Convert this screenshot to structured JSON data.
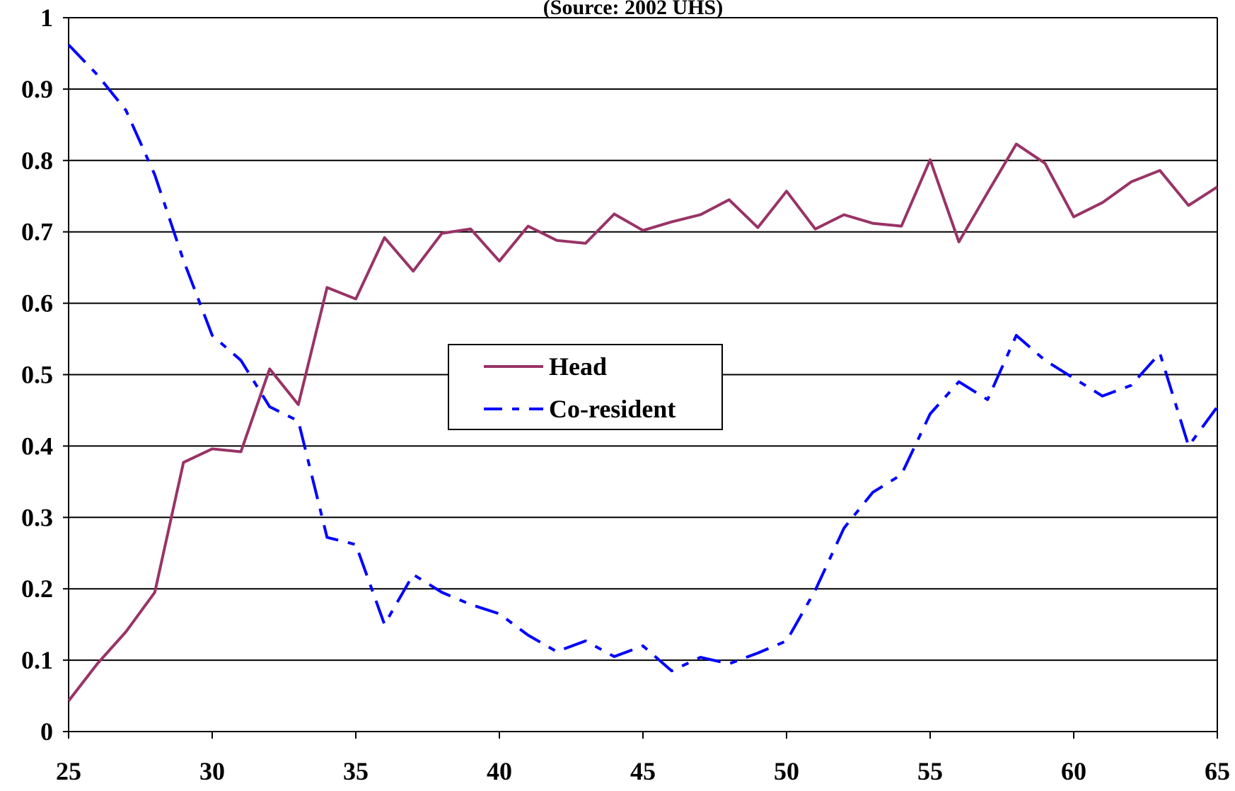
{
  "chart_data": {
    "type": "line",
    "subtitle": "(Source: 2002 UHS)",
    "x": [
      25,
      26,
      27,
      28,
      29,
      30,
      31,
      32,
      33,
      34,
      35,
      36,
      37,
      38,
      39,
      40,
      41,
      42,
      43,
      44,
      45,
      46,
      47,
      48,
      49,
      50,
      51,
      52,
      53,
      54,
      55,
      56,
      57,
      58,
      59,
      60,
      61,
      62,
      63,
      64,
      65
    ],
    "series": [
      {
        "name": "Head",
        "color": "#993366",
        "dash": "none",
        "values": [
          0.043,
          0.095,
          0.14,
          0.195,
          0.377,
          0.396,
          0.392,
          0.508,
          0.458,
          0.622,
          0.606,
          0.692,
          0.645,
          0.698,
          0.704,
          0.659,
          0.708,
          0.688,
          0.684,
          0.725,
          0.702,
          0.714,
          0.724,
          0.745,
          0.706,
          0.757,
          0.704,
          0.724,
          0.712,
          0.708,
          0.801,
          0.686,
          0.755,
          0.823,
          0.796,
          0.721,
          0.741,
          0.77,
          0.786,
          0.737,
          0.763
        ]
      },
      {
        "name": "Co-resident",
        "color": "#0000ff",
        "dash": "dash-dot",
        "values": [
          0.962,
          0.92,
          0.87,
          0.78,
          0.66,
          0.555,
          0.52,
          0.455,
          0.435,
          0.272,
          0.262,
          0.15,
          0.22,
          0.195,
          0.178,
          0.165,
          0.135,
          0.112,
          0.127,
          0.105,
          0.12,
          0.085,
          0.104,
          0.095,
          0.11,
          0.127,
          0.198,
          0.285,
          0.335,
          0.36,
          0.445,
          0.49,
          0.465,
          0.555,
          0.52,
          0.495,
          0.47,
          0.485,
          0.53,
          0.4,
          0.455
        ]
      }
    ],
    "xlim": [
      25,
      65
    ],
    "xticks": [
      25,
      30,
      35,
      40,
      45,
      50,
      55,
      60,
      65
    ],
    "ylim": [
      0,
      1
    ],
    "yticks": [
      0,
      0.1,
      0.2,
      0.3,
      0.4,
      0.5,
      0.6,
      0.7,
      0.8,
      0.9,
      1
    ],
    "grid": true,
    "legend": "center"
  }
}
